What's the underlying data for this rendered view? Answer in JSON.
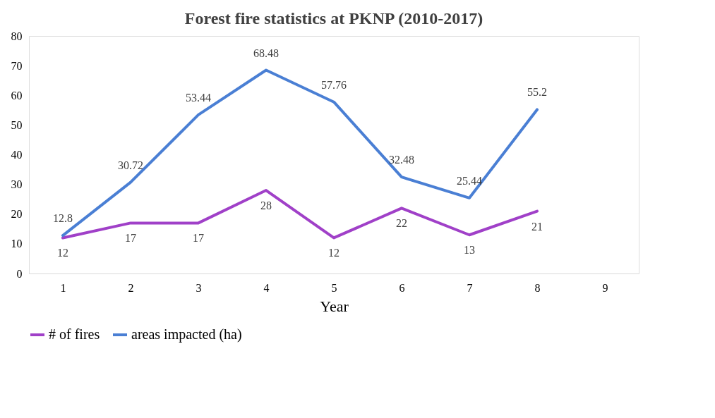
{
  "chart_data": {
    "type": "line",
    "title": "Forest fire statistics at PKNP (2010-2017)",
    "xlabel": "Year",
    "categories": [
      "1",
      "2",
      "3",
      "4",
      "5",
      "6",
      "7",
      "8",
      "9"
    ],
    "series": [
      {
        "name": "# of fires",
        "color": "#a040c8",
        "values": [
          12,
          17,
          17,
          28,
          12,
          22,
          13,
          21,
          null
        ]
      },
      {
        "name": "areas impacted (ha)",
        "color": "#4a7fd4",
        "values": [
          12.8,
          30.72,
          53.44,
          68.48,
          57.76,
          32.48,
          25.44,
          55.2,
          null
        ]
      }
    ],
    "ylim": [
      0,
      80
    ],
    "yticks": [
      0,
      10,
      20,
      30,
      40,
      50,
      60,
      70,
      80
    ],
    "data_labels": true,
    "legend": "bottom",
    "grid": false
  }
}
